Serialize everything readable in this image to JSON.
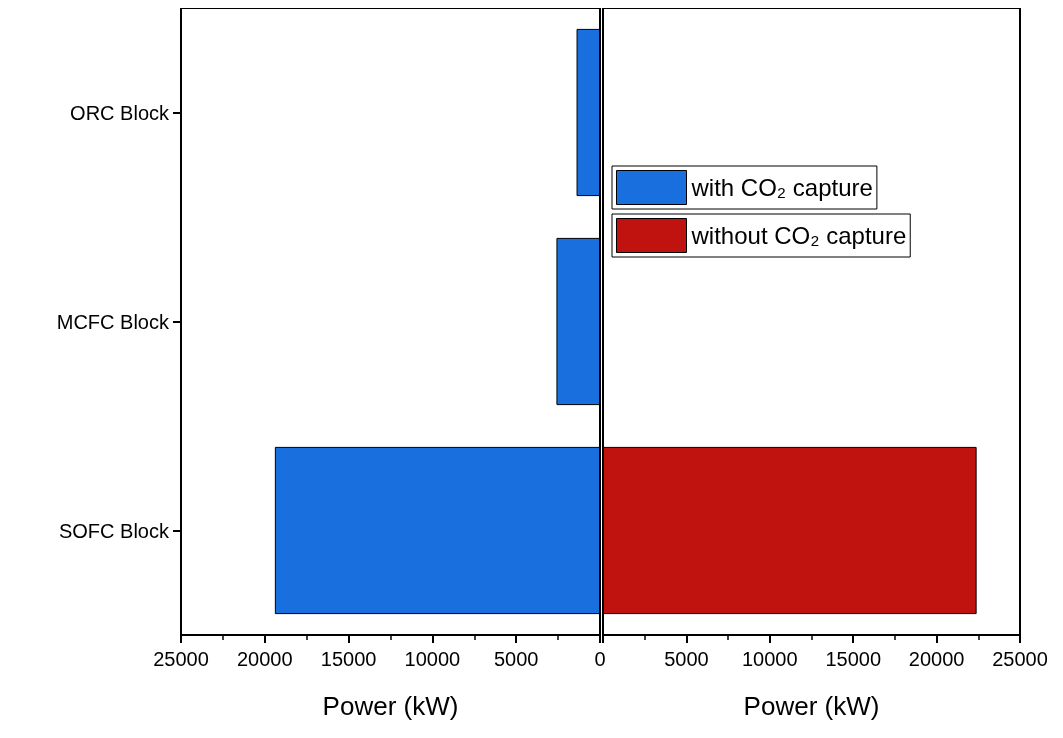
{
  "chart_data": [
    {
      "type": "bar",
      "orientation": "horizontal",
      "categories": [
        "ORC Block",
        "MCFC Block",
        "SOFC Block"
      ],
      "xlabel": "Power (kW)",
      "xlim": [
        25000,
        0
      ],
      "xticks": [
        25000,
        20000,
        15000,
        10000,
        5000,
        0
      ],
      "legend": "top right",
      "series": [
        {
          "name": "with CO₂ capture",
          "color": "#1a6fdf",
          "values": [
            1400,
            2600,
            19400
          ]
        }
      ]
    },
    {
      "type": "bar",
      "orientation": "horizontal",
      "categories": [
        null,
        null,
        null
      ],
      "xlabel": "Power (kW)",
      "xlim": [
        0,
        25000
      ],
      "xticks": [
        {
          "value": 0,
          "label": null
        },
        5000,
        10000,
        15000,
        20000,
        25000
      ],
      "tick_labels": "x",
      "legend": "top",
      "series": [
        {
          "name": "without CO₂ capture",
          "color": "#c0120f",
          "values": [
            null,
            null,
            22400
          ]
        }
      ]
    }
  ]
}
